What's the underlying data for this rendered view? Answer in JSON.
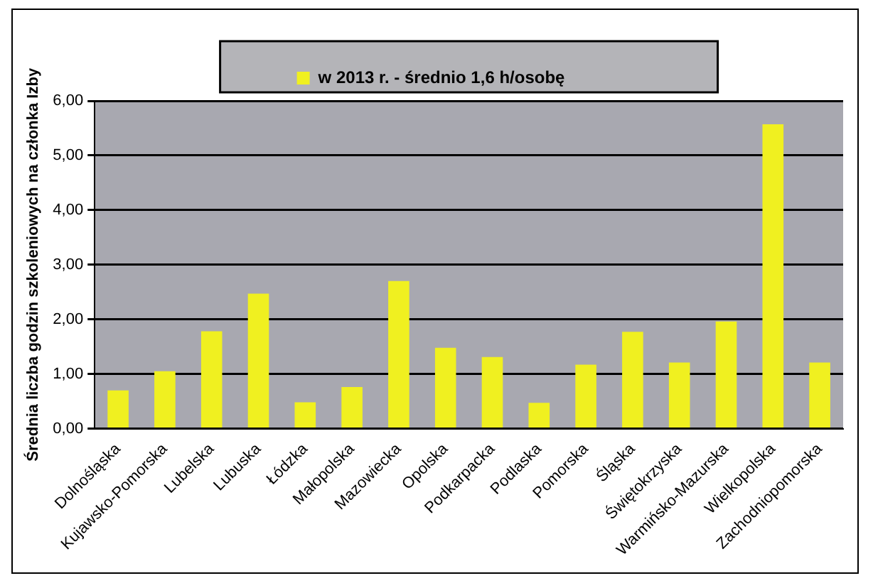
{
  "chart_data": {
    "type": "bar",
    "ylabel": "Średnia liczba godzin szkoleniowych na członka Izby",
    "categories": [
      "Dolnośląska",
      "Kujawsko-Pomorska",
      "Lubelska",
      "Lubuska",
      "Łódzka",
      "Małopolska",
      "Mazowiecka",
      "Opolska",
      "Podkarpacka",
      "Podlaska",
      "Pomorska",
      "Śląska",
      "Świętokrzyska",
      "Warmińsko-Mazurska",
      "Wielkopolska",
      "Zachodniopomorska"
    ],
    "series": [
      {
        "name": "w 2013 r. - średnio 1,6 h/osobę",
        "color": "#f0f020",
        "values": [
          0.7,
          1.05,
          1.78,
          2.47,
          0.48,
          0.76,
          2.7,
          1.48,
          1.31,
          0.47,
          1.17,
          1.77,
          1.21,
          1.96,
          5.57,
          1.21
        ]
      }
    ],
    "ylim": [
      0,
      6
    ],
    "yticks": [
      {
        "value": 0,
        "label": "0,00"
      },
      {
        "value": 1,
        "label": "1,00"
      },
      {
        "value": 2,
        "label": "2,00"
      },
      {
        "value": 3,
        "label": "3,00"
      },
      {
        "value": 4,
        "label": "4,00"
      },
      {
        "value": 5,
        "label": "5,00"
      },
      {
        "value": 6,
        "label": "6,00"
      }
    ],
    "grid": "y",
    "legend": "top"
  }
}
